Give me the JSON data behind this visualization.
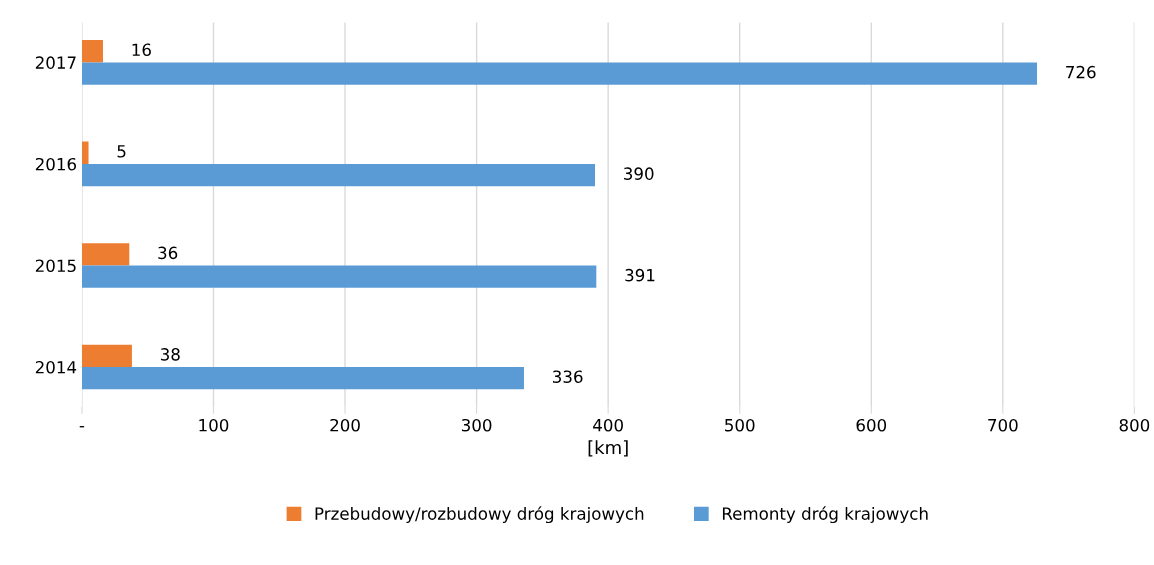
{
  "chart_data": {
    "type": "bar",
    "orientation": "horizontal",
    "xlabel": "[km]",
    "categories": [
      "2017",
      "2016",
      "2015",
      "2014"
    ],
    "series": [
      {
        "name": "Przebudowy/rozbudowy dróg krajowych",
        "color": "#ed7d31",
        "values": [
          16,
          5,
          36,
          38
        ]
      },
      {
        "name": "Remonty dróg krajowych",
        "color": "#5b9bd5",
        "values": [
          726,
          390,
          391,
          336
        ]
      }
    ],
    "xlim": [
      0,
      800
    ],
    "xticks": [
      {
        "value": 0,
        "label": "-"
      },
      100,
      200,
      300,
      400,
      500,
      600,
      700,
      800
    ],
    "grid": "x",
    "legend": "bottom",
    "data_labels": true
  }
}
